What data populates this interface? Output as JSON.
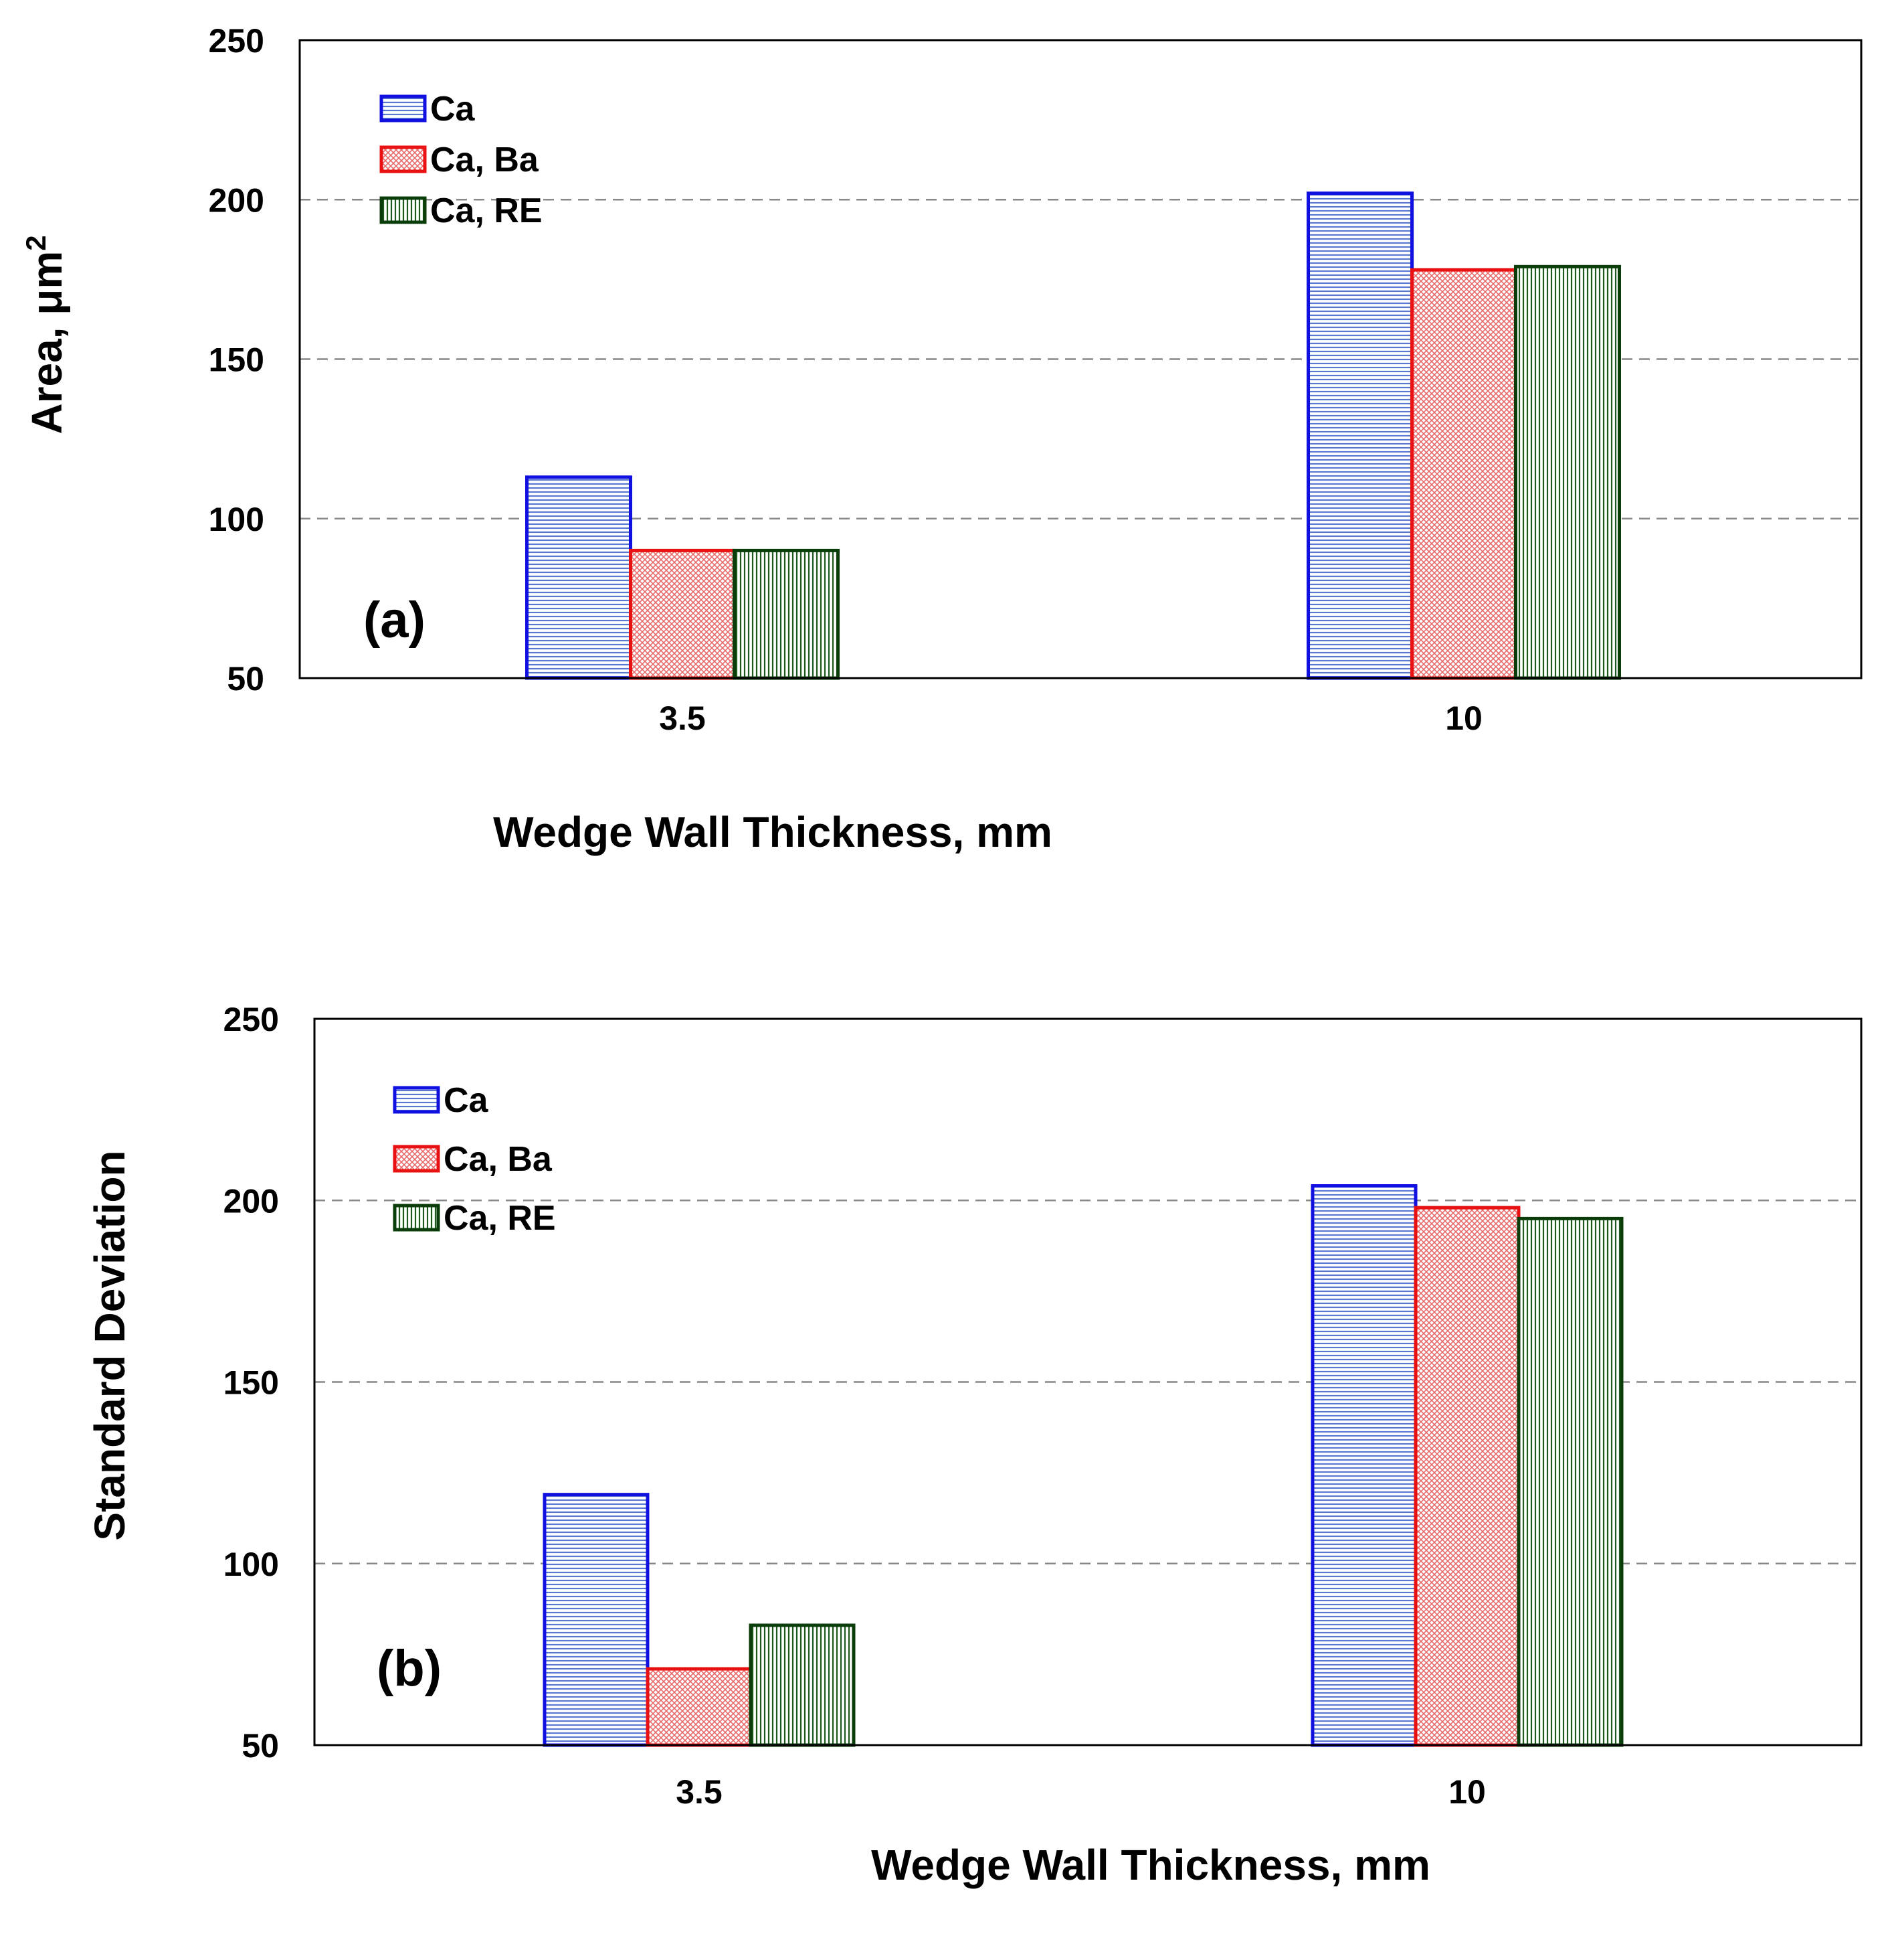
{
  "chart_data": [
    {
      "type": "bar",
      "panel_label": "(a)",
      "categories": [
        "3.5",
        "10"
      ],
      "series": [
        {
          "name": "Ca",
          "values": [
            113,
            202
          ]
        },
        {
          "name": "Ca, Ba",
          "values": [
            90,
            178
          ]
        },
        {
          "name": "Ca, RE",
          "values": [
            90,
            179
          ]
        }
      ],
      "xlabel": "Wedge Wall Thickness, mm",
      "ylabel": "Area, μm",
      "ylabel_superscript": "2",
      "ylim": [
        50,
        250
      ],
      "yticks": [
        "50",
        "100",
        "150",
        "200",
        "250"
      ],
      "grid": true,
      "legend_position": "top-left"
    },
    {
      "type": "bar",
      "panel_label": "(b)",
      "categories": [
        "3.5",
        "10"
      ],
      "series": [
        {
          "name": "Ca",
          "values": [
            119,
            204
          ]
        },
        {
          "name": "Ca, Ba",
          "values": [
            71,
            198
          ]
        },
        {
          "name": "Ca, RE",
          "values": [
            83,
            195
          ]
        }
      ],
      "xlabel": "Wedge Wall Thickness, mm",
      "ylabel": "Standard Deviation",
      "ylim": [
        50,
        250
      ],
      "yticks": [
        "50",
        "100",
        "150",
        "200",
        "250"
      ],
      "grid": true,
      "legend_position": "top-left"
    }
  ],
  "series_colors": [
    "#1010e0",
    "#e81010",
    "#0a3d0a"
  ],
  "series_fills": [
    "#aab8e8",
    "#f6b0b0",
    "#8cae8c"
  ]
}
